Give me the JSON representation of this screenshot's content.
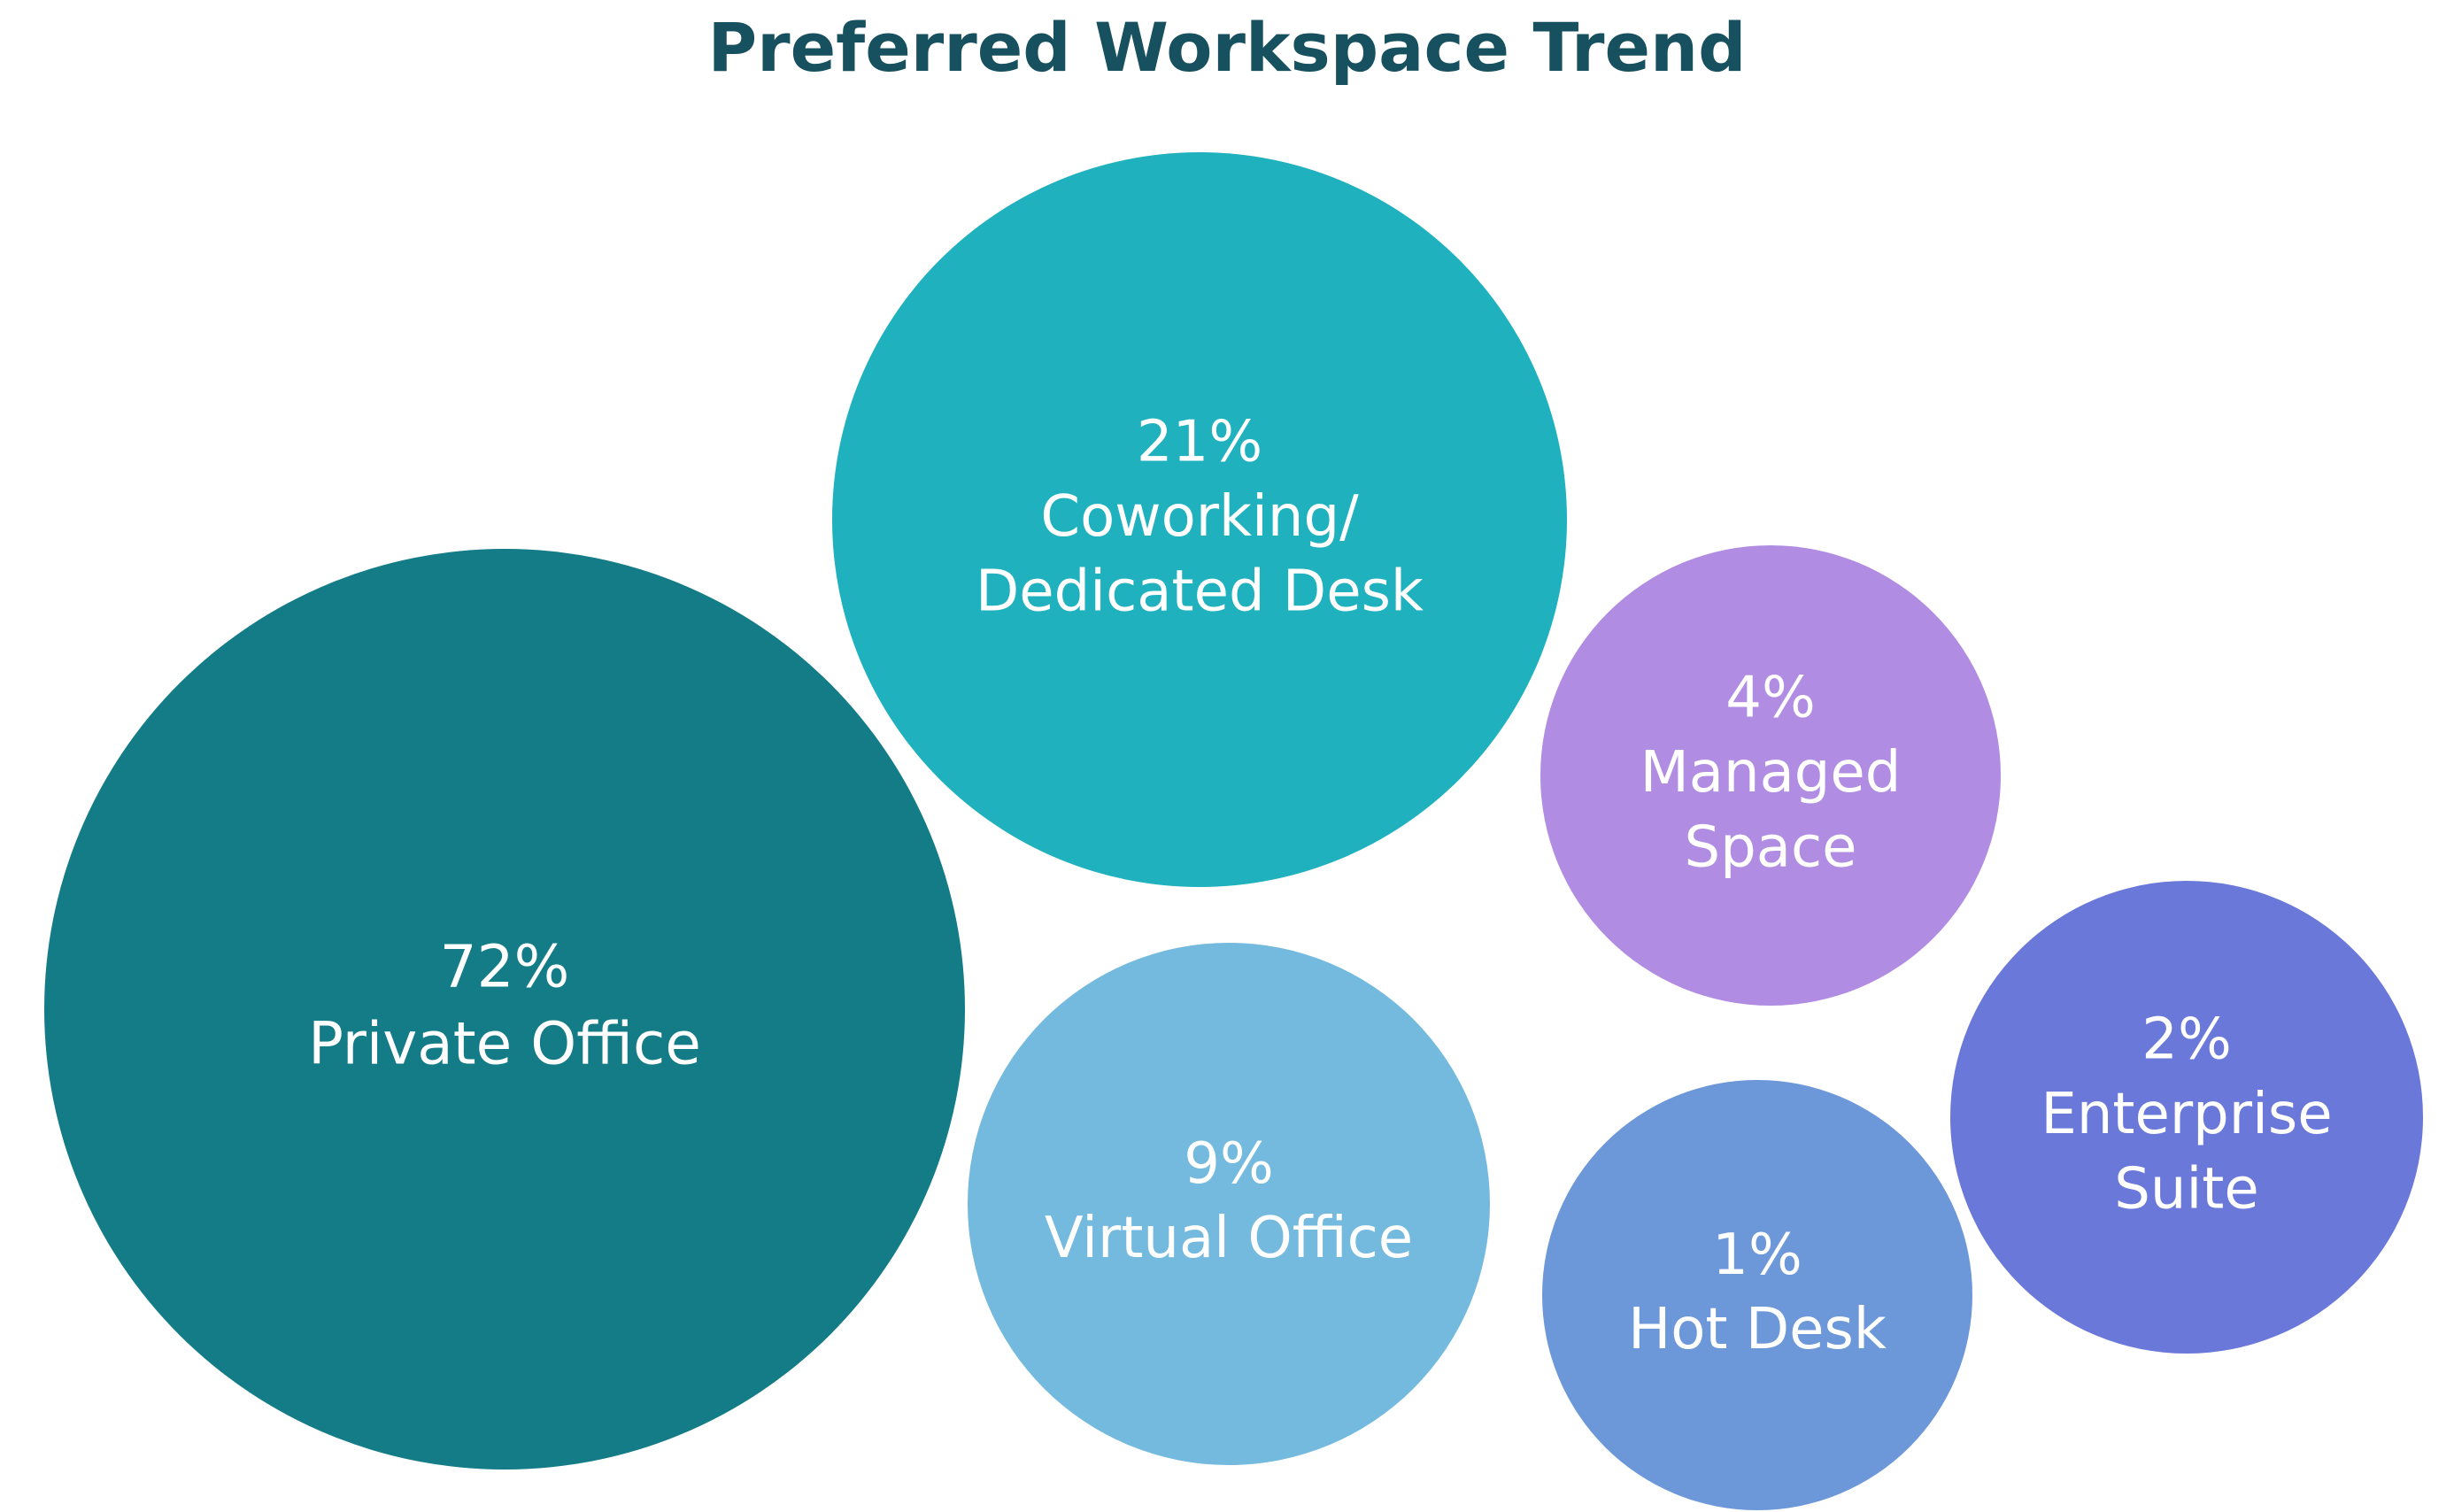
{
  "chart_data": {
    "type": "bubble",
    "title": "Preferred Workspace Trend",
    "title_color": "#17505e",
    "value_unit": "%",
    "bubbles": [
      {
        "category": "Private Office",
        "label_lines": [
          "Private Office"
        ],
        "value": 72,
        "value_label": "72%",
        "color": "#137c86"
      },
      {
        "category": "Coworking/ Dedicated Desk",
        "label_lines": [
          "Coworking/",
          "Dedicated Desk"
        ],
        "value": 21,
        "value_label": "21%",
        "color": "#1fb1be"
      },
      {
        "category": "Managed Space",
        "label_lines": [
          "Managed",
          "Space"
        ],
        "value": 4,
        "value_label": "4%",
        "color": "#b08de3"
      },
      {
        "category": "Virtual Office",
        "label_lines": [
          "Virtual Office"
        ],
        "value": 9,
        "value_label": "9%",
        "color": "#74b9de"
      },
      {
        "category": "Hot Desk",
        "label_lines": [
          "Hot Desk"
        ],
        "value": 1,
        "value_label": "1%",
        "color": "#6c97d9"
      },
      {
        "category": "Enterprise Suite",
        "label_lines": [
          "Enterprise",
          "Suite"
        ],
        "value": 2,
        "value_label": "2%",
        "color": "#6a78da"
      }
    ]
  }
}
